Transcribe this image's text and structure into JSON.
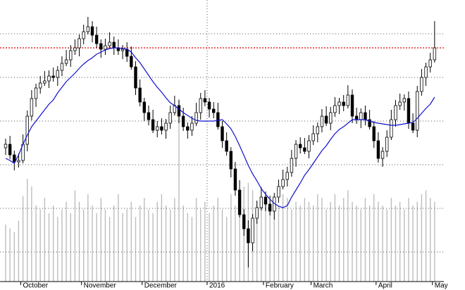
{
  "chart_data": {
    "type": "candlestick",
    "categories": [
      null,
      null,
      null,
      null,
      "October",
      null,
      null,
      null,
      null,
      null,
      null,
      null,
      null,
      null,
      null,
      null,
      null,
      null,
      "November",
      null,
      null,
      null,
      null,
      null,
      null,
      null,
      null,
      null,
      null,
      null,
      null,
      null,
      "December",
      null,
      null,
      null,
      null,
      null,
      null,
      null,
      null,
      null,
      null,
      null,
      null,
      null,
      null,
      "2016",
      null,
      null,
      null,
      null,
      null,
      null,
      null,
      null,
      null,
      null,
      null,
      null,
      "February",
      null,
      null,
      null,
      null,
      null,
      null,
      null,
      null,
      null,
      null,
      "March",
      null,
      null,
      null,
      null,
      null,
      null,
      null,
      null,
      null,
      null,
      null,
      null,
      null,
      null,
      "April",
      null,
      null,
      null,
      null,
      null,
      null,
      null,
      null,
      null,
      null,
      null,
      null,
      "May"
    ],
    "open": [
      190,
      195,
      180,
      170,
      172,
      195,
      235,
      260,
      275,
      282,
      285,
      292,
      290,
      300,
      310,
      315,
      328,
      332,
      345,
      355,
      362,
      350,
      338,
      330,
      335,
      340,
      332,
      328,
      330,
      320,
      305,
      275,
      255,
      240,
      230,
      215,
      220,
      215,
      225,
      240,
      250,
      235,
      220,
      215,
      225,
      240,
      260,
      255,
      245,
      240,
      220,
      200,
      185,
      160,
      130,
      95,
      75,
      55,
      90,
      105,
      120,
      110,
      100,
      120,
      135,
      145,
      155,
      175,
      195,
      190,
      185,
      200,
      210,
      220,
      235,
      225,
      240,
      250,
      255,
      250,
      265,
      235,
      230,
      240,
      230,
      220,
      200,
      175,
      185,
      205,
      230,
      250,
      255,
      260,
      225,
      215,
      270,
      290,
      305,
      315
    ],
    "high": [
      203,
      207,
      186,
      182,
      209,
      243,
      272,
      281,
      292,
      299,
      300,
      304,
      306,
      320,
      329,
      336,
      344,
      351,
      365,
      376,
      370,
      362,
      344,
      345,
      354,
      348,
      344,
      336,
      340,
      334,
      313,
      287,
      261,
      250,
      244,
      228,
      232,
      231,
      250,
      264,
      258,
      247,
      226,
      235,
      254,
      268,
      272,
      261,
      255,
      254,
      228,
      212,
      191,
      170,
      144,
      103,
      87,
      96,
      115,
      134,
      128,
      122,
      126,
      145,
      159,
      163,
      187,
      201,
      205,
      204,
      208,
      222,
      226,
      245,
      249,
      248,
      262,
      261,
      265,
      279,
      273,
      247,
      246,
      250,
      244,
      228,
      212,
      191,
      215,
      244,
      258,
      267,
      266,
      270,
      239,
      278,
      302,
      311,
      325,
      370
    ],
    "low": [
      180,
      174,
      158,
      162,
      168,
      185,
      229,
      248,
      267,
      278,
      275,
      284,
      278,
      292,
      306,
      305,
      322,
      320,
      337,
      351,
      340,
      332,
      318,
      322,
      331,
      322,
      322,
      316,
      312,
      301,
      265,
      249,
      228,
      222,
      211,
      205,
      209,
      203,
      217,
      236,
      225,
      214,
      203,
      207,
      221,
      230,
      249,
      233,
      232,
      216,
      190,
      179,
      148,
      122,
      91,
      65,
      20,
      43,
      82,
      101,
      100,
      94,
      88,
      112,
      131,
      135,
      149,
      163,
      182,
      181,
      175,
      194,
      198,
      212,
      221,
      215,
      234,
      238,
      242,
      246,
      225,
      224,
      218,
      222,
      216,
      190,
      169,
      163,
      177,
      201,
      220,
      244,
      243,
      217,
      211,
      205,
      264,
      278,
      297,
      311
    ],
    "close": [
      195,
      180,
      170,
      172,
      195,
      235,
      260,
      275,
      282,
      285,
      292,
      290,
      300,
      310,
      315,
      328,
      332,
      345,
      355,
      362,
      350,
      338,
      330,
      335,
      340,
      332,
      328,
      330,
      320,
      305,
      275,
      255,
      240,
      230,
      215,
      220,
      215,
      225,
      240,
      250,
      235,
      220,
      215,
      225,
      240,
      260,
      255,
      245,
      240,
      220,
      200,
      185,
      160,
      130,
      95,
      75,
      55,
      90,
      105,
      120,
      110,
      100,
      120,
      135,
      145,
      155,
      175,
      195,
      190,
      185,
      200,
      210,
      220,
      235,
      225,
      240,
      250,
      255,
      250,
      265,
      235,
      230,
      240,
      230,
      220,
      200,
      175,
      185,
      205,
      230,
      250,
      255,
      260,
      225,
      215,
      270,
      290,
      305,
      315,
      332
    ],
    "moving_average": [
      175,
      172,
      168,
      180,
      195,
      208,
      220,
      228,
      236,
      244,
      252,
      258,
      268,
      276,
      284,
      290,
      296,
      303,
      309,
      314,
      318,
      323,
      326,
      329,
      331,
      332,
      332,
      331,
      330,
      326,
      318,
      311,
      302,
      293,
      284,
      276,
      269,
      261,
      254,
      250,
      245,
      240,
      236,
      232,
      229,
      228,
      228,
      228,
      228,
      229,
      230,
      224,
      217,
      206,
      193,
      179,
      165,
      153,
      143,
      132,
      124,
      117,
      111,
      107,
      105,
      108,
      120,
      130,
      140,
      151,
      159,
      168,
      177,
      186,
      193,
      202,
      210,
      216,
      220,
      225,
      230,
      230,
      230,
      230,
      228,
      226,
      225,
      224,
      223,
      222,
      222,
      223,
      224,
      225,
      226,
      232,
      239,
      246,
      252,
      262
    ],
    "volume": [
      30,
      28,
      26,
      32,
      45,
      54,
      50,
      40,
      38,
      44,
      36,
      40,
      34,
      38,
      42,
      36,
      48,
      42,
      38,
      46,
      40,
      36,
      44,
      38,
      34,
      40,
      46,
      36,
      38,
      42,
      34,
      40,
      44,
      38,
      36,
      42,
      46,
      40,
      38,
      44,
      96,
      40,
      36,
      34,
      44,
      38,
      42,
      36,
      40,
      44,
      38,
      34,
      46,
      40,
      44,
      50,
      52,
      48,
      42,
      40,
      44,
      38,
      42,
      40,
      46,
      44,
      38,
      42,
      40,
      44,
      42,
      40,
      46,
      44,
      38,
      42,
      46,
      40,
      44,
      48,
      42,
      40,
      38,
      44,
      40,
      46,
      42,
      40,
      38,
      44,
      40,
      42,
      38,
      44,
      40,
      42,
      46,
      48,
      44,
      42
    ],
    "ylim": [
      0,
      400
    ],
    "volume_lim": [
      0,
      100
    ],
    "gridlines": [
      352,
      290,
      228,
      166,
      104,
      42
    ],
    "reference_line": 332,
    "reference_color": "#e00000",
    "ma_color": "#1010d0",
    "volume_color": "#bdbdbd",
    "up_color": "#ffffff",
    "down_color": "#000000"
  }
}
